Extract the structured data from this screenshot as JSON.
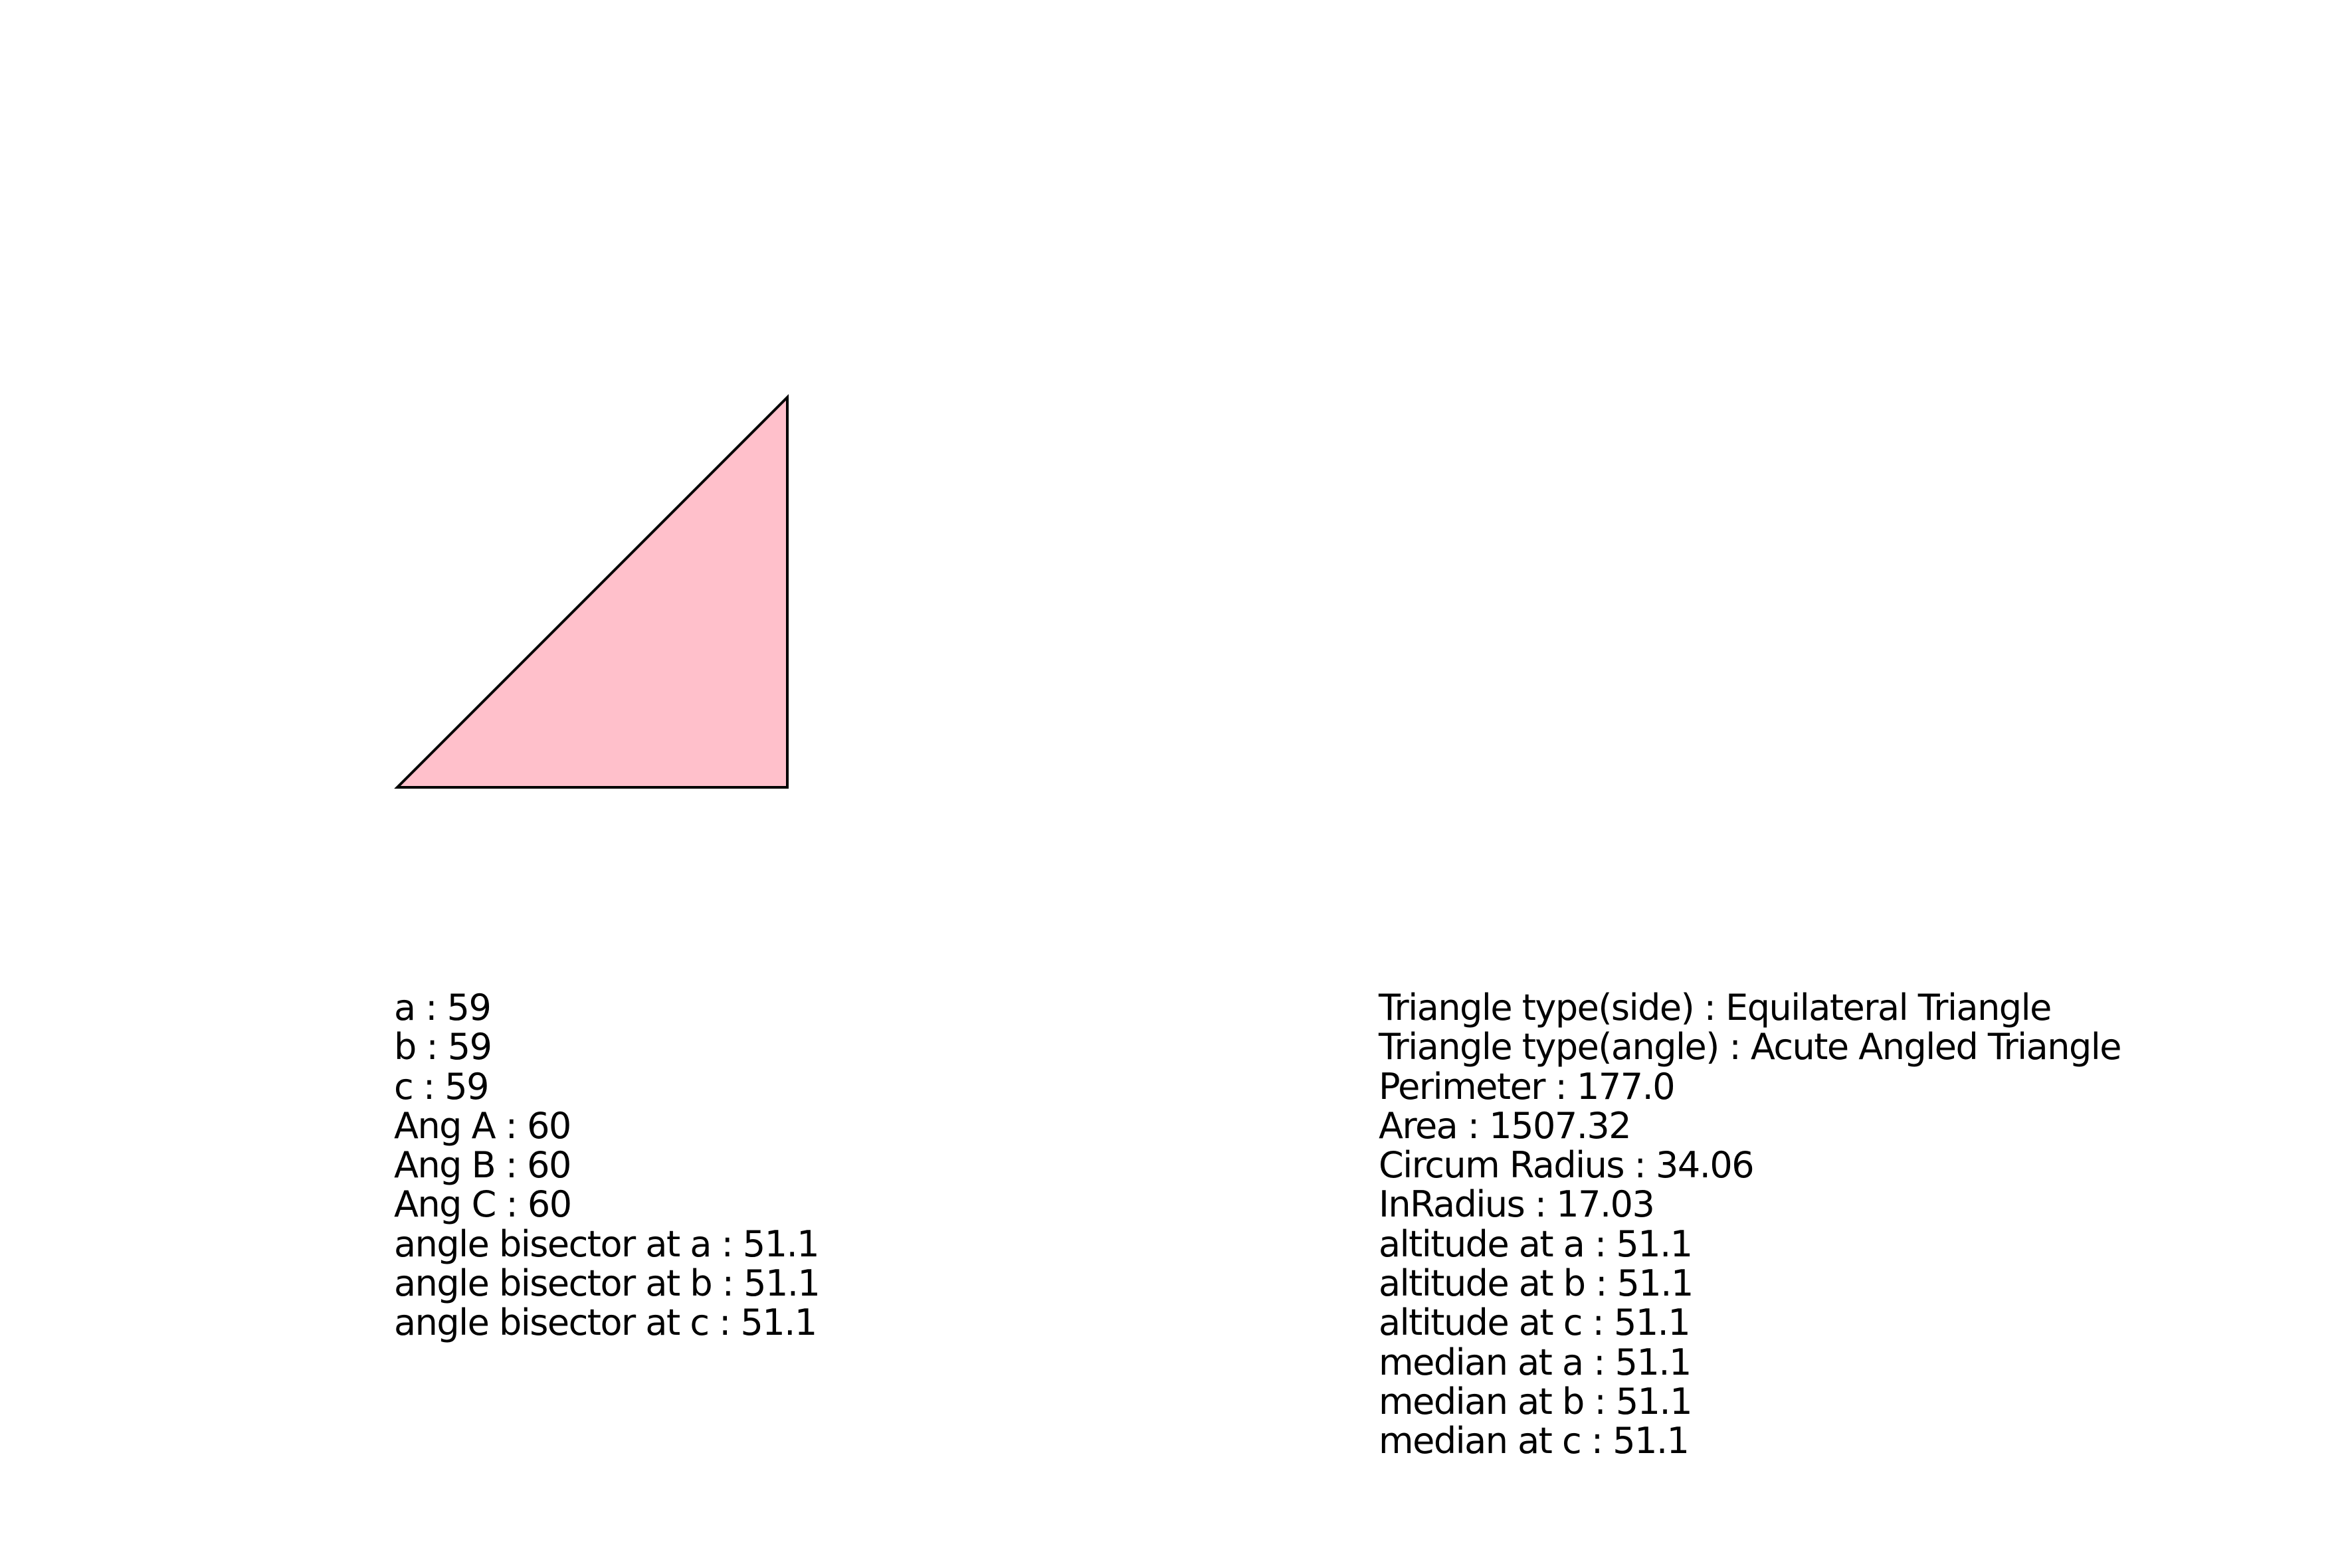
{
  "triangle": {
    "fill": "#ffc0cb",
    "stroke": "#000000",
    "side_lengths": {
      "a": 59,
      "b": 59,
      "c": 59
    }
  },
  "left_list": [
    "a : 59",
    "b : 59",
    "c : 59",
    "Ang A : 60",
    "Ang B : 60",
    "Ang C : 60",
    "angle bisector at a : 51.1",
    "angle bisector at b : 51.1",
    "angle bisector at c : 51.1"
  ],
  "right_list": [
    "Triangle type(side) : Equilateral Triangle",
    "Triangle type(angle) : Acute Angled Triangle",
    "Perimeter : 177.0",
    "Area : 1507.32",
    "Circum Radius : 34.06",
    "InRadius : 17.03",
    "altitude at a : 51.1",
    "altitude at b : 51.1",
    "altitude at c : 51.1",
    "median at a : 51.1",
    "median at b : 51.1",
    "median at c : 51.1"
  ]
}
